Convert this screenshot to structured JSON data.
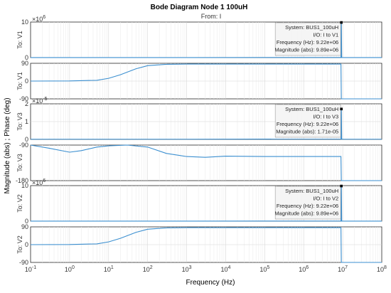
{
  "figure": {
    "title": "Bode Diagram Node 1 100uH",
    "subtitle": "From: I",
    "ylabel": "Magnitude (abs) ; Phase (deg)",
    "xlabel": "Frequency  (Hz)"
  },
  "chart_data": {
    "type": "line",
    "x_scale": "log",
    "xlim": [
      0.1,
      100000000
    ],
    "x_ticks": [
      "10^-1",
      "10^0",
      "10^1",
      "10^2",
      "10^3",
      "10^4",
      "10^5",
      "10^6",
      "10^7",
      "10^8"
    ],
    "x_tick_base": "10",
    "x_tick_exps": [
      "-1",
      "0",
      "1",
      "2",
      "3",
      "4",
      "5",
      "6",
      "7",
      "8"
    ],
    "grid": true,
    "line_color": "#3b8fd0",
    "panels": [
      {
        "ylabel": "To: V1",
        "kind": "magnitude",
        "scale_base": "10",
        "scale_exp": "6",
        "y_ticks": [
          "10",
          "0"
        ],
        "ylim": [
          0,
          10
        ],
        "curve": [
          [
            0.1,
            0.02
          ],
          [
            1000,
            0.02
          ],
          [
            9000000,
            0.05
          ],
          [
            9220000,
            9.89
          ],
          [
            9400000,
            0.02
          ],
          [
            100000000,
            0.02
          ]
        ]
      },
      {
        "ylabel": "To: V1",
        "kind": "phase",
        "y_ticks": [
          "90",
          "0",
          "-90"
        ],
        "ylim": [
          -90,
          90
        ],
        "curve": [
          [
            0.1,
            0
          ],
          [
            1,
            0.5
          ],
          [
            5,
            4
          ],
          [
            10,
            14
          ],
          [
            20,
            32
          ],
          [
            50,
            62
          ],
          [
            100,
            78
          ],
          [
            300,
            85
          ],
          [
            1000,
            86
          ],
          [
            10000,
            86
          ],
          [
            1000000,
            86
          ],
          [
            9000000,
            86
          ],
          [
            9200000,
            -90
          ],
          [
            100000000,
            -90
          ]
        ]
      },
      {
        "ylabel": "To: V3",
        "kind": "magnitude",
        "scale_base": "10",
        "scale_exp": "-5",
        "y_ticks": [
          "2",
          "1",
          "0"
        ],
        "ylim": [
          0,
          2
        ],
        "curve": [
          [
            0.1,
            0.01
          ],
          [
            1000,
            0.01
          ],
          [
            9000000,
            0.02
          ],
          [
            9220000,
            1.71
          ],
          [
            9400000,
            0.01
          ],
          [
            100000000,
            0.01
          ]
        ]
      },
      {
        "ylabel": "To: V3",
        "kind": "phase",
        "y_ticks": [
          "-90",
          "-180"
        ],
        "ylim": [
          -180,
          -90
        ],
        "curve": [
          [
            0.1,
            -88
          ],
          [
            0.3,
            -98
          ],
          [
            1,
            -108
          ],
          [
            2,
            -104
          ],
          [
            5,
            -95
          ],
          [
            10,
            -92
          ],
          [
            30,
            -90
          ],
          [
            100,
            -95
          ],
          [
            300,
            -111
          ],
          [
            1000,
            -119
          ],
          [
            3000,
            -121
          ],
          [
            10000,
            -118
          ],
          [
            100000,
            -119
          ],
          [
            1000000,
            -119
          ],
          [
            9000000,
            -119
          ],
          [
            9200000,
            -180
          ],
          [
            100000000,
            -180
          ]
        ]
      },
      {
        "ylabel": "To: V2",
        "kind": "magnitude",
        "scale_base": "10",
        "scale_exp": "6",
        "y_ticks": [
          "10",
          "0"
        ],
        "ylim": [
          0,
          10
        ],
        "curve": [
          [
            0.1,
            0.02
          ],
          [
            1000,
            0.02
          ],
          [
            9000000,
            0.05
          ],
          [
            9220000,
            9.89
          ],
          [
            9400000,
            0.02
          ],
          [
            100000000,
            0.02
          ]
        ]
      },
      {
        "ylabel": "To: V2",
        "kind": "phase",
        "y_ticks": [
          "90",
          "0",
          "-90"
        ],
        "ylim": [
          -90,
          90
        ],
        "curve": [
          [
            0.1,
            0
          ],
          [
            1,
            0.5
          ],
          [
            5,
            4
          ],
          [
            10,
            14
          ],
          [
            20,
            32
          ],
          [
            50,
            62
          ],
          [
            100,
            78
          ],
          [
            300,
            85
          ],
          [
            1000,
            86
          ],
          [
            10000,
            86
          ],
          [
            1000000,
            86
          ],
          [
            9000000,
            86
          ],
          [
            9200000,
            -90
          ],
          [
            100000000,
            -90
          ]
        ]
      }
    ],
    "datatips": [
      {
        "panel": 0,
        "x": 9220000,
        "y": 9.89,
        "lines": [
          "System: BUS1_100uH",
          "I/O: I to V1",
          "Frequency (Hz): 9.22e+06",
          "Magnitude (abs): 9.89e+06"
        ]
      },
      {
        "panel": 2,
        "x": 9220000,
        "y": 1.71,
        "lines": [
          "System: BUS1_100uH",
          "I/O: I to V3",
          "Frequency (Hz): 9.22e+06",
          "Magnitude (abs): 1.71e-05"
        ]
      },
      {
        "panel": 4,
        "x": 9220000,
        "y": 9.89,
        "lines": [
          "System: BUS1_100uH",
          "I/O: I to V2",
          "Frequency (Hz): 9.22e+06",
          "Magnitude (abs): 9.89e+06"
        ]
      }
    ]
  }
}
